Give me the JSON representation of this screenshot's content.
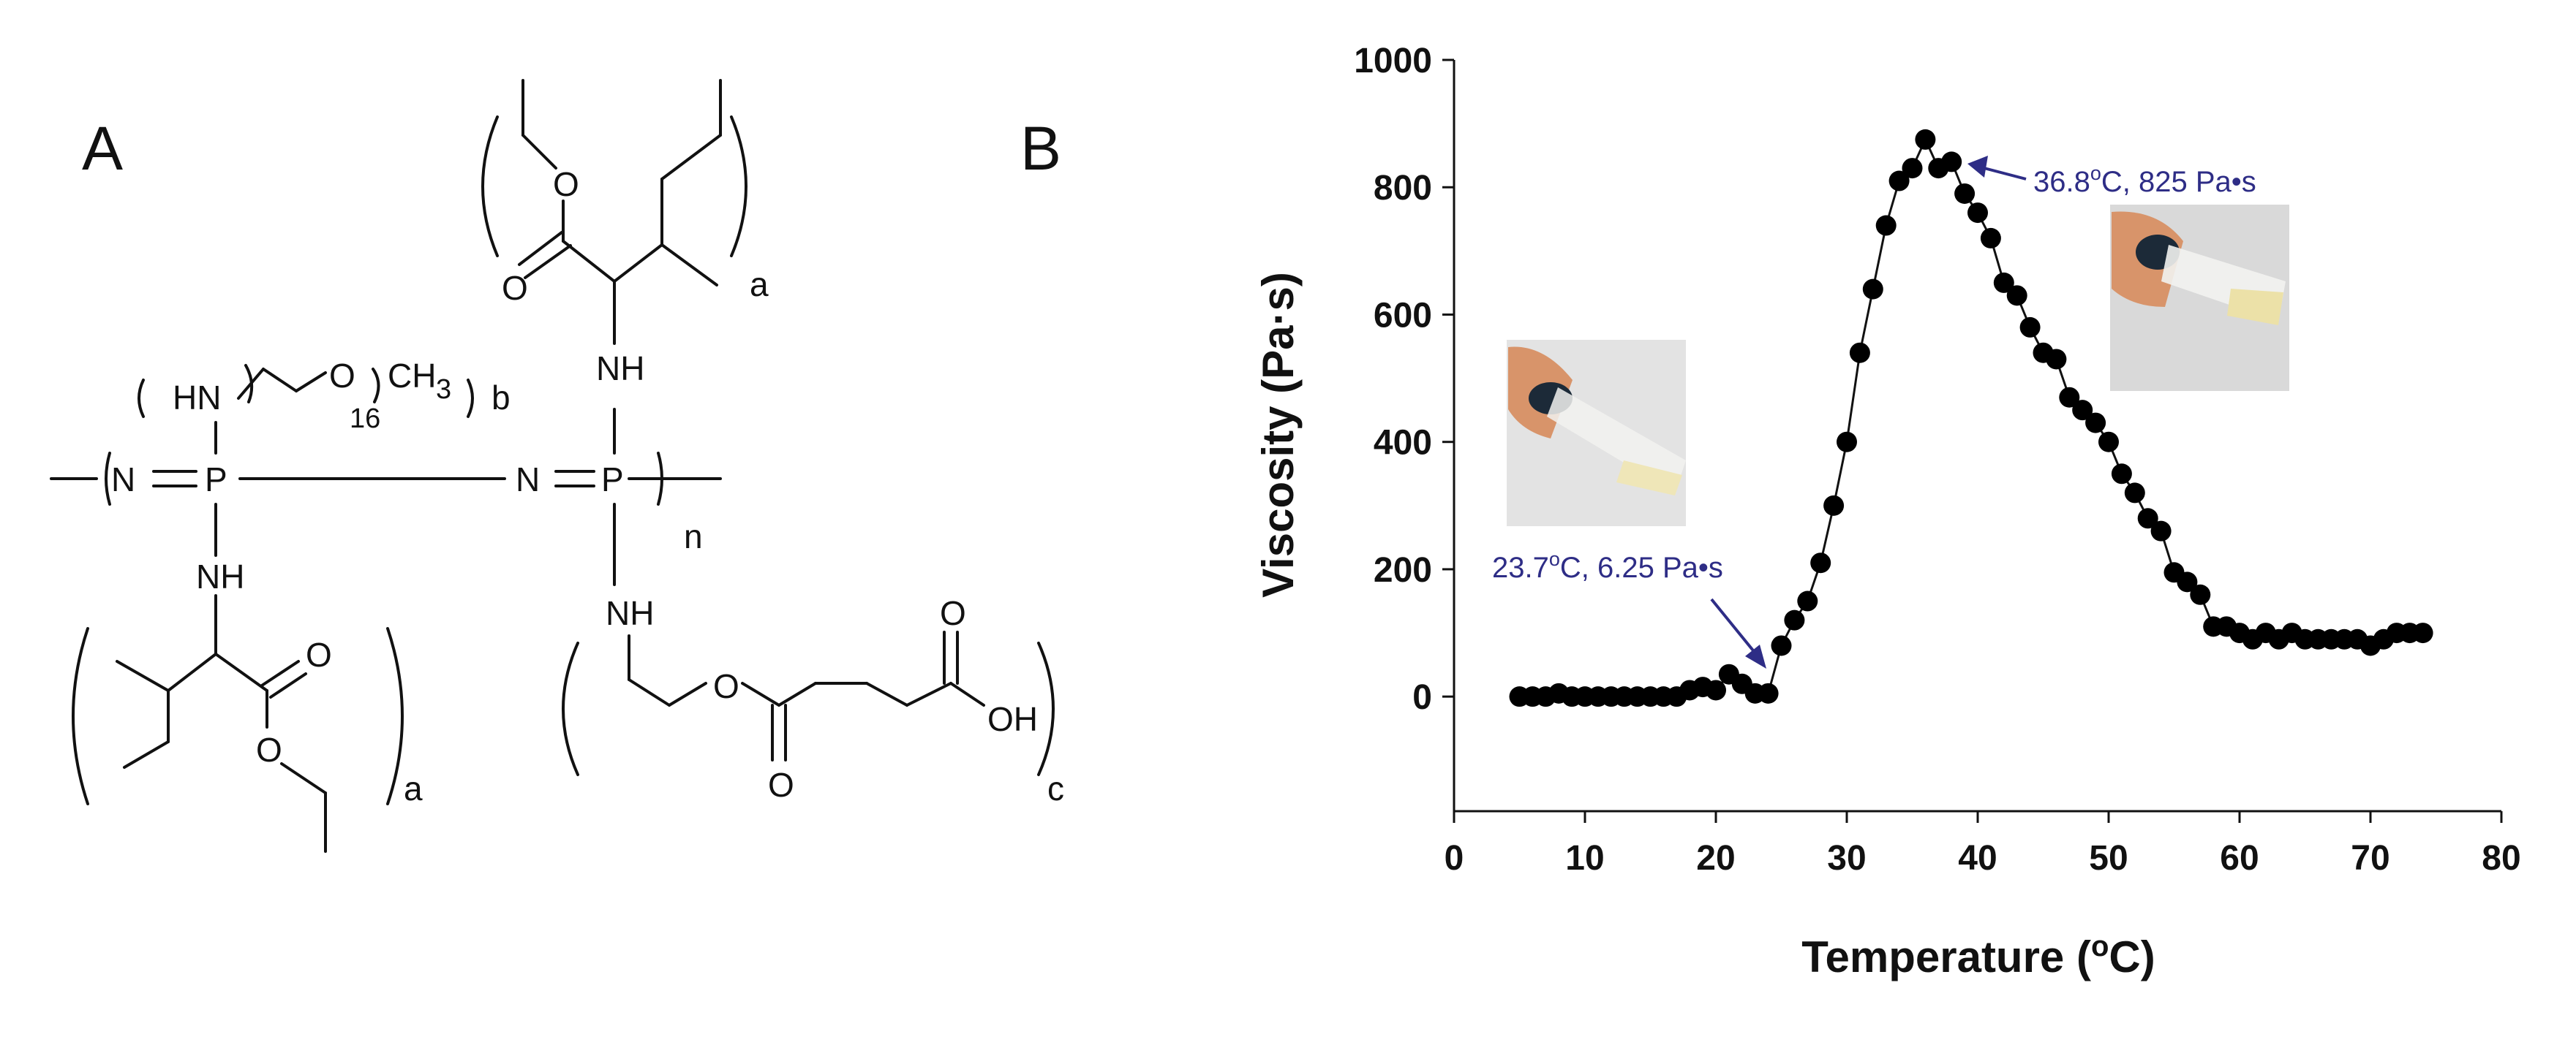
{
  "panel_a": {
    "label": "A",
    "atoms": {
      "n_left": "N",
      "p_left": "P",
      "n_right": "N",
      "p_right": "P",
      "nh_peg": "HN",
      "o_peg": "O",
      "ch3": "CH",
      "ch3_sub": "3",
      "peg_repeat": "16",
      "nh_top_right": "NH",
      "nh_bottom_left": "NH",
      "nh_bottom_right": "NH",
      "o_top_ester": "O",
      "o_top_carbonyl": "O",
      "o_bl_carbonyl": "O",
      "o_bl_ester": "O",
      "o_br_ester": "O",
      "o_br_carbonyl1": "O",
      "o_br_carbonyl2": "O",
      "oh": "OH"
    },
    "subscripts": {
      "a_top": "a",
      "b": "b",
      "n": "n",
      "a_bottom": "a",
      "c": "c"
    }
  },
  "panel_b": {
    "label": "B",
    "inset_descriptions": []
  },
  "chart_data": {
    "type": "scatter",
    "title": "",
    "xlabel_prefix": "Temperature (",
    "xlabel_sup": "o",
    "xlabel_suffix": "C)",
    "ylabel": "Viscosity (Pa·s)",
    "xlim": [
      0,
      80
    ],
    "ylim": [
      -180,
      1000
    ],
    "x_ticks": [
      "0",
      "10",
      "20",
      "30",
      "40",
      "50",
      "60",
      "70",
      "80"
    ],
    "y_ticks": [
      "0",
      "200",
      "400",
      "600",
      "800",
      "1000"
    ],
    "series": [
      {
        "name": "Viscosity",
        "marker": "circle",
        "line": true,
        "color": "#000000",
        "x": [
          5,
          6,
          7,
          8,
          9,
          10,
          11,
          12,
          13,
          14,
          15,
          16,
          17,
          18,
          19,
          20,
          21,
          22,
          23,
          24,
          25,
          26,
          27,
          28,
          29,
          30,
          31,
          32,
          33,
          34,
          35,
          36,
          37,
          38,
          39,
          40,
          41,
          42,
          43,
          44,
          45,
          46,
          47,
          48,
          49,
          50,
          51,
          52,
          53,
          54,
          55,
          56,
          57,
          58,
          59,
          60,
          61,
          62,
          63,
          64,
          65,
          66,
          67,
          68,
          69,
          70,
          71,
          72,
          73,
          74
        ],
        "y": [
          0,
          0,
          0,
          5,
          0,
          0,
          0,
          0,
          0,
          0,
          0,
          0,
          0,
          10,
          15,
          10,
          35,
          20,
          5,
          5,
          80,
          120,
          150,
          210,
          300,
          400,
          540,
          640,
          740,
          810,
          830,
          875,
          830,
          840,
          790,
          760,
          720,
          650,
          630,
          580,
          540,
          530,
          470,
          450,
          430,
          400,
          350,
          320,
          280,
          260,
          195,
          180,
          160,
          110,
          110,
          100,
          90,
          100,
          90,
          100,
          90,
          90,
          90,
          90,
          90,
          80,
          90,
          100,
          100,
          100
        ]
      }
    ],
    "annotations": [
      {
        "text_prefix": "23.7",
        "sup": "o",
        "text_suffix": "C, 6.25 Pa•s",
        "x": 23.7,
        "y": 6.25
      },
      {
        "text_prefix": "36.8",
        "sup": "o",
        "text_suffix": "C, 825 Pa•s",
        "x": 36.8,
        "y": 825
      }
    ],
    "grid": false,
    "legend": "none"
  }
}
